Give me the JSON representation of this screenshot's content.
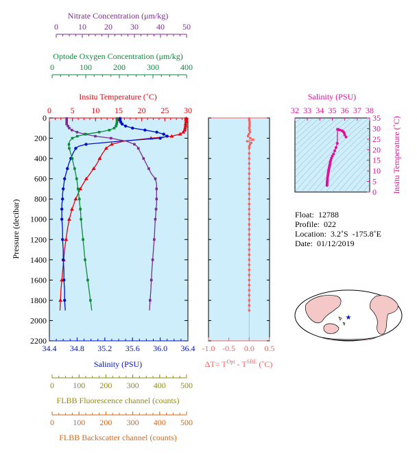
{
  "info": {
    "float": "Float:  12788",
    "profile": "Profile:  022",
    "location": "Location:  3.2˚S  -175.8˚E",
    "date": "Date:  01/12/2019"
  },
  "colors": {
    "nitrate": "#7b2d8e",
    "oxygen": "#0a8a3a",
    "temperature": "#e8000b",
    "salinity": "#0010c8",
    "fluorescence": "#8f8a1a",
    "backscatter": "#d2691e",
    "deltaT": "#f46060",
    "ts": "#e0109a",
    "panel": "#cdeefa"
  },
  "chart_data": [
    {
      "type": "line",
      "title": "",
      "ylabel": "Pressure (decibar)",
      "ylim": [
        2200,
        0
      ],
      "yticks": [
        "0",
        "200",
        "400",
        "600",
        "800",
        "1000",
        "1200",
        "1400",
        "1600",
        "1800",
        "2000",
        "2200"
      ],
      "axes": {
        "nitrate": {
          "label": "Nitrate Concentration (μm/kg)",
          "ticks": [
            "0",
            "10",
            "20",
            "30",
            "40",
            "50"
          ],
          "lim": [
            0,
            50
          ]
        },
        "oxygen": {
          "label": "Optode Oxygen Concentration (μm/kg)",
          "ticks": [
            "0",
            "100",
            "200",
            "300",
            "400"
          ],
          "lim": [
            0,
            400
          ]
        },
        "temperature": {
          "label": "Insitu Temperature (˚C)",
          "ticks": [
            "0",
            "5",
            "10",
            "15",
            "20",
            "25",
            "30"
          ],
          "lim": [
            0,
            30
          ]
        },
        "salinity": {
          "label": "Salinity (PSU)",
          "ticks": [
            "34.4",
            "34.8",
            "35.2",
            "35.6",
            "36.0",
            "36.4"
          ],
          "lim": [
            34.4,
            36.4
          ]
        },
        "fluorescence": {
          "label": "FLBB Fluorescence channel (counts)",
          "ticks": [
            "0",
            "100",
            "200",
            "300",
            "400",
            "500"
          ],
          "lim": [
            0,
            500
          ]
        },
        "backscatter": {
          "label": "FLBB Backscatter channel (counts)",
          "ticks": [
            "0",
            "100",
            "200",
            "300",
            "400",
            "500"
          ],
          "lim": [
            0,
            500
          ]
        }
      },
      "series": [
        {
          "key": "temperature",
          "p": [
            5,
            20,
            40,
            60,
            80,
            100,
            120,
            140,
            160,
            180,
            200,
            230,
            260,
            280,
            300,
            350,
            400,
            450,
            500,
            550,
            600,
            650,
            700,
            750,
            800,
            850,
            900,
            950,
            1000,
            1100,
            1200,
            1300,
            1400,
            1500,
            1600,
            1700,
            1800,
            1900
          ],
          "v": [
            29.6,
            29.6,
            29.6,
            29.5,
            29.5,
            29.4,
            29.3,
            29.0,
            28.3,
            26.5,
            22.0,
            16.0,
            13.5,
            12.8,
            12.3,
            11.5,
            10.9,
            10.3,
            9.6,
            8.8,
            8.0,
            7.3,
            6.7,
            6.2,
            5.7,
            5.3,
            4.9,
            4.6,
            4.3,
            3.9,
            3.6,
            3.3,
            3.1,
            2.9,
            2.7,
            2.5,
            2.4,
            2.3
          ]
        },
        {
          "key": "salinity",
          "p": [
            5,
            20,
            40,
            60,
            80,
            100,
            120,
            140,
            160,
            180,
            200,
            230,
            260,
            280,
            300,
            350,
            400,
            450,
            500,
            550,
            600,
            650,
            700,
            750,
            800,
            850,
            900,
            950,
            1000,
            1100,
            1200,
            1300,
            1400,
            1500,
            1600,
            1700,
            1800,
            1900
          ],
          "v": [
            35.42,
            35.42,
            35.43,
            35.45,
            35.5,
            35.6,
            35.78,
            35.95,
            36.05,
            36.1,
            36.0,
            35.4,
            34.93,
            34.82,
            34.78,
            34.74,
            34.71,
            34.68,
            34.66,
            34.64,
            34.62,
            34.61,
            34.6,
            34.59,
            34.59,
            34.58,
            34.58,
            34.58,
            34.58,
            34.59,
            34.59,
            34.6,
            34.6,
            34.61,
            34.61,
            34.62,
            34.62,
            34.63
          ]
        },
        {
          "key": "nitrate",
          "p": [
            5,
            20,
            40,
            60,
            80,
            100,
            120,
            140,
            160,
            180,
            200,
            230,
            260,
            280,
            300,
            350,
            400,
            450,
            500,
            550,
            600,
            650,
            700,
            750,
            800,
            850,
            900,
            950,
            1000,
            1100,
            1200,
            1300,
            1400,
            1500,
            1600,
            1700,
            1800,
            1900
          ],
          "v": [
            4,
            4,
            4,
            4,
            4.5,
            5,
            6,
            8,
            11,
            15,
            21,
            27,
            30,
            31,
            31.5,
            32.5,
            33.5,
            34.5,
            35.5,
            36.5,
            38,
            38.5,
            38.5,
            38.5,
            38.5,
            38.5,
            38.3,
            38.2,
            38,
            37.8,
            37.6,
            37.3,
            37,
            36.7,
            36.5,
            36.3,
            36,
            35.8
          ]
        },
        {
          "key": "oxygen",
          "p": [
            5,
            20,
            40,
            60,
            80,
            100,
            120,
            140,
            160,
            180,
            200,
            230,
            260,
            280,
            300,
            350,
            400,
            450,
            500,
            550,
            600,
            650,
            700,
            750,
            800,
            850,
            900,
            950,
            1000,
            1100,
            1200,
            1300,
            1400,
            1500,
            1600,
            1700,
            1800,
            1900
          ],
          "v": [
            193,
            193,
            193,
            192,
            190,
            185,
            170,
            140,
            100,
            75,
            60,
            52,
            50,
            50,
            51,
            55,
            60,
            63,
            67,
            70,
            73,
            75,
            77,
            79,
            81,
            82,
            84,
            85,
            86,
            89,
            92,
            95,
            98,
            102,
            106,
            110,
            114,
            118
          ]
        }
      ],
      "grid": false
    },
    {
      "type": "scatter",
      "xlabel": "ΔT= Tᴼᵖᵗ - Tˢᴮᴱ (˚C)",
      "xlabel_main": "ΔT= T",
      "xlabel_sup1": "Opt",
      "xlabel_mid": " - T",
      "xlabel_sup2": "SBE",
      "xlabel_end": " (˚C)",
      "xticks": [
        "-1.0",
        "-0.5",
        "0.0",
        "0.5"
      ],
      "xlim": [
        -1.0,
        0.5
      ],
      "ylim": [
        2200,
        0
      ],
      "p": [
        5,
        20,
        40,
        60,
        80,
        100,
        120,
        140,
        160,
        180,
        200,
        215,
        230,
        245,
        260,
        280,
        300,
        350,
        400,
        450,
        500,
        550,
        600,
        650,
        700,
        750,
        800,
        850,
        900,
        950,
        1000,
        1050,
        1100,
        1150,
        1200,
        1250,
        1300,
        1350,
        1400,
        1450,
        1500,
        1550,
        1600,
        1650,
        1700,
        1750,
        1800,
        1850,
        1900
      ],
      "v": [
        0.0,
        0.0,
        0.01,
        0.01,
        0.01,
        0.0,
        0.01,
        0.02,
        -0.01,
        -0.03,
        0.03,
        0.1,
        -0.05,
        0.05,
        0.02,
        0.0,
        0.0,
        0.0,
        0.0,
        0.0,
        0.0,
        0.0,
        0.0,
        0.0,
        0.0,
        0.0,
        0.0,
        0.0,
        0.0,
        0.0,
        0.0,
        0.0,
        0.0,
        0.0,
        0.0,
        0.0,
        0.0,
        0.0,
        0.0,
        0.0,
        0.0,
        0.0,
        0.0,
        0.0,
        0.0,
        0.0,
        0.0,
        0.0,
        0.0
      ]
    },
    {
      "type": "scatter",
      "xlabel": "Salinity (PSU)",
      "ylabel": "Insitu Temperature (˚C)",
      "xticks": [
        "32",
        "33",
        "34",
        "35",
        "36",
        "37",
        "38"
      ],
      "yticks": [
        "0",
        "5",
        "10",
        "15",
        "20",
        "25",
        "30",
        "35"
      ],
      "xlim": [
        32,
        38
      ],
      "ylim": [
        0,
        35
      ],
      "s": [
        36.1,
        36.0,
        35.95,
        35.88,
        35.78,
        35.6,
        35.5,
        35.45,
        35.42,
        35.4,
        35.3,
        35.2,
        35.1,
        35.0,
        34.93,
        34.88,
        34.84,
        34.82,
        34.8,
        34.78,
        34.76,
        34.74,
        34.72,
        34.7,
        34.68,
        34.66,
        34.64,
        34.62,
        34.61,
        34.6,
        34.59,
        34.59,
        34.58,
        34.58
      ],
      "t": [
        26,
        27,
        28,
        28.5,
        29,
        29.3,
        29.5,
        29.6,
        29.6,
        23,
        21,
        19.5,
        18,
        17,
        16,
        15,
        14.3,
        13.5,
        12.8,
        12.3,
        11.8,
        11.2,
        10.6,
        10,
        9.3,
        8.5,
        7.7,
        7,
        6.3,
        5.6,
        5,
        4.4,
        3.7,
        3.1
      ]
    }
  ]
}
